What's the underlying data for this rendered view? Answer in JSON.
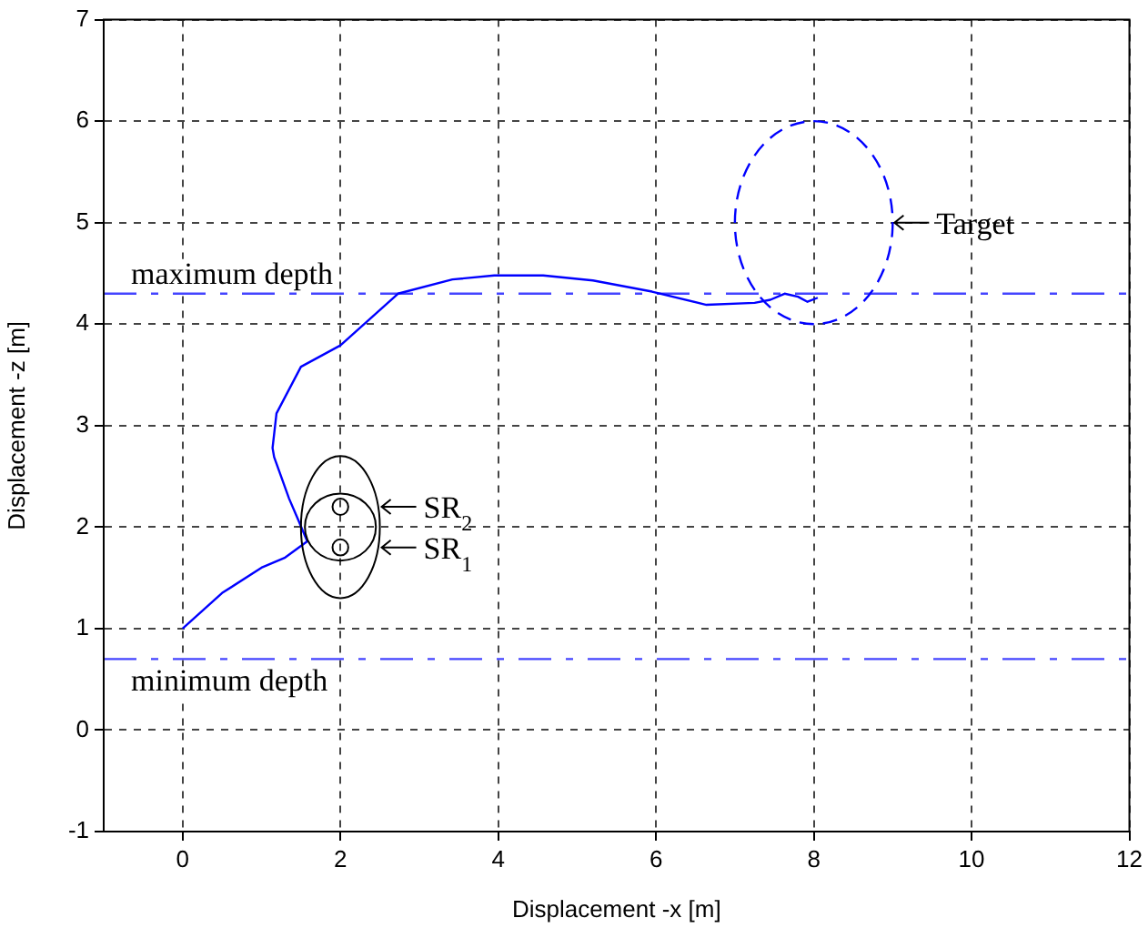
{
  "chart_data": {
    "type": "line",
    "xlabel": "Displacement -x [m]",
    "ylabel": "Displacement -z [m]",
    "xlim": [
      -1,
      12
    ],
    "xticks": [
      0,
      2,
      4,
      6,
      8,
      10,
      12
    ],
    "ylim": [
      -1,
      7
    ],
    "yticks": [
      -1,
      0,
      1,
      2,
      3,
      4,
      5,
      6,
      7
    ],
    "grid": true,
    "legend": false,
    "marker": "none",
    "series": [
      {
        "color": "#0000ff",
        "line_style": "solid",
        "x": [
          0,
          0.5,
          1.0,
          1.3,
          1.58,
          1.45,
          1.35,
          1.16,
          1.14,
          1.19,
          1.5,
          2.0,
          2.73,
          3.42,
          3.95,
          4.57,
          5.2,
          5.95,
          6.64,
          7.25,
          7.45,
          7.63,
          7.8,
          7.92,
          8.05
        ],
        "values": [
          1.0,
          1.35,
          1.6,
          1.7,
          1.86,
          2.1,
          2.28,
          2.69,
          2.78,
          3.12,
          3.58,
          3.79,
          4.3,
          4.44,
          4.48,
          4.48,
          4.43,
          4.32,
          4.19,
          4.21,
          4.24,
          4.3,
          4.27,
          4.22,
          4.26
        ]
      }
    ],
    "ref_lines": [
      {
        "axis": "y",
        "value": 4.3,
        "label": "maximum depth",
        "color": "#4444ff",
        "line_style": "dashed"
      },
      {
        "axis": "y",
        "value": 0.7,
        "label": "minimum depth",
        "color": "#4444ff",
        "line_style": "dashed"
      }
    ],
    "annotations": [
      "Target",
      "SR$_{2}$",
      "SR$_{1}$"
    ]
  }
}
